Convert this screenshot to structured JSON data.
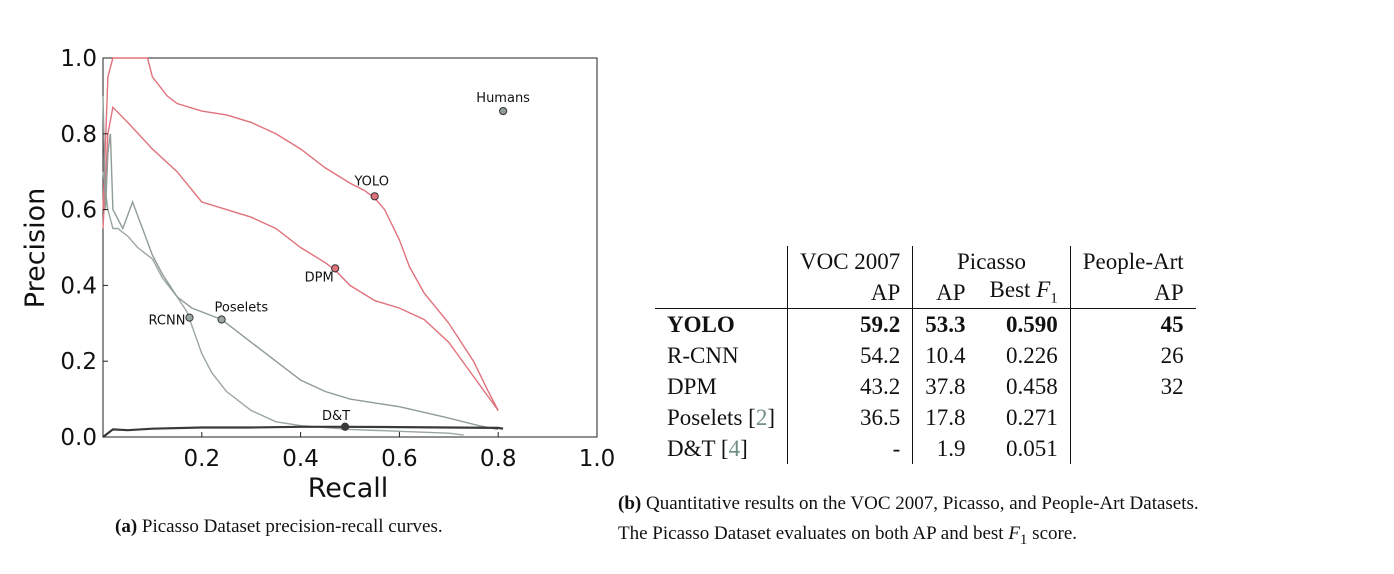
{
  "chart_data": {
    "type": "line",
    "xlabel": "Recall",
    "ylabel": "Precision",
    "xlim": [
      0.0,
      1.0
    ],
    "ylim": [
      0.0,
      1.0
    ],
    "x_ticks": [
      "0.2",
      "0.4",
      "0.6",
      "0.8",
      "1.0"
    ],
    "y_ticks": [
      "0.0",
      "0.2",
      "0.4",
      "0.6",
      "0.8",
      "1.0"
    ],
    "grid": false,
    "colors": {
      "yolo": "#e0727c",
      "dpm": "#e0727c",
      "rcnn": "#9aa6a2",
      "poselets": "#8f9c97",
      "dt": "#3a3a3a"
    },
    "series": [
      {
        "name": "YOLO",
        "x": [
          0,
          0.01,
          0.02,
          0.05,
          0.09,
          0.1,
          0.13,
          0.15,
          0.2,
          0.25,
          0.3,
          0.35,
          0.4,
          0.45,
          0.5,
          0.53,
          0.55,
          0.57,
          0.6,
          0.62,
          0.65,
          0.7,
          0.75,
          0.78,
          0.8
        ],
        "y": [
          0.6,
          0.95,
          1.0,
          1.0,
          1.0,
          0.95,
          0.9,
          0.88,
          0.86,
          0.85,
          0.83,
          0.8,
          0.76,
          0.71,
          0.67,
          0.65,
          0.63,
          0.6,
          0.52,
          0.45,
          0.38,
          0.3,
          0.2,
          0.12,
          0.07
        ]
      },
      {
        "name": "DPM",
        "x": [
          0,
          0.01,
          0.02,
          0.05,
          0.1,
          0.15,
          0.2,
          0.25,
          0.3,
          0.35,
          0.4,
          0.45,
          0.47,
          0.5,
          0.55,
          0.6,
          0.65,
          0.7,
          0.75,
          0.8
        ],
        "y": [
          0.55,
          0.8,
          0.87,
          0.83,
          0.76,
          0.7,
          0.62,
          0.6,
          0.58,
          0.55,
          0.5,
          0.46,
          0.44,
          0.4,
          0.36,
          0.34,
          0.31,
          0.25,
          0.16,
          0.07
        ]
      },
      {
        "name": "RCNN",
        "x": [
          0,
          0.01,
          0.02,
          0.03,
          0.05,
          0.07,
          0.08,
          0.1,
          0.12,
          0.15,
          0.17,
          0.2,
          0.22,
          0.25,
          0.3,
          0.35,
          0.4,
          0.5,
          0.6,
          0.7,
          0.73
        ],
        "y": [
          0.7,
          0.6,
          0.55,
          0.55,
          0.53,
          0.5,
          0.49,
          0.47,
          0.42,
          0.37,
          0.33,
          0.22,
          0.17,
          0.12,
          0.07,
          0.04,
          0.03,
          0.02,
          0.015,
          0.01,
          0.005
        ]
      },
      {
        "name": "Poselets",
        "x": [
          0,
          0.005,
          0.01,
          0.015,
          0.02,
          0.04,
          0.06,
          0.08,
          0.1,
          0.12,
          0.15,
          0.18,
          0.2,
          0.24,
          0.25,
          0.3,
          0.35,
          0.4,
          0.45,
          0.5,
          0.6,
          0.7,
          0.76,
          0.8
        ],
        "y": [
          0.9,
          0.6,
          0.75,
          0.8,
          0.6,
          0.55,
          0.62,
          0.55,
          0.48,
          0.43,
          0.37,
          0.34,
          0.33,
          0.31,
          0.3,
          0.25,
          0.2,
          0.15,
          0.12,
          0.1,
          0.08,
          0.05,
          0.03,
          0.02
        ]
      },
      {
        "name": "D&T",
        "x": [
          0,
          0.02,
          0.05,
          0.1,
          0.2,
          0.3,
          0.4,
          0.49,
          0.6,
          0.7,
          0.8,
          0.81
        ],
        "y": [
          0.0,
          0.02,
          0.018,
          0.022,
          0.025,
          0.025,
          0.027,
          0.027,
          0.026,
          0.025,
          0.024,
          0.022
        ]
      }
    ],
    "annotations": [
      {
        "label": "Humans",
        "x": 0.81,
        "y": 0.86,
        "color": "#8f9c97"
      },
      {
        "label": "YOLO",
        "x": 0.55,
        "y": 0.635,
        "color": "#e0727c"
      },
      {
        "label": "DPM",
        "x": 0.47,
        "y": 0.445,
        "color": "#e0727c"
      },
      {
        "label": "Poselets",
        "x": 0.24,
        "y": 0.31,
        "color": "#9aa6a2"
      },
      {
        "label": "RCNN",
        "x": 0.175,
        "y": 0.315,
        "color": "#9aa6a2"
      },
      {
        "label": "D&T",
        "x": 0.49,
        "y": 0.027,
        "color": "#3a3a3a"
      }
    ]
  },
  "caption_a": {
    "label": "(a)",
    "text": " Picasso Dataset precision-recall curves."
  },
  "caption_b": {
    "label": "(b)",
    "line1": " Quantitative results on the VOC 2007, Picasso, and People-Art Datasets.",
    "line2_pre": "The Picasso Dataset evaluates on both AP and best ",
    "f": "F",
    "sub": "1",
    "line2_post": " score."
  },
  "table": {
    "group_headers": [
      "VOC 2007",
      "Picasso",
      "People-Art"
    ],
    "sub_headers": [
      "AP",
      "AP",
      "Best ",
      "AP"
    ],
    "f_symbol": "F",
    "f_sub": "1",
    "rows": [
      {
        "name": "YOLO",
        "ref": "",
        "voc": "59.2",
        "pic_ap": "53.3",
        "pic_f1": "0.590",
        "people": "45"
      },
      {
        "name": "R-CNN",
        "ref": "",
        "voc": "54.2",
        "pic_ap": "10.4",
        "pic_f1": "0.226",
        "people": "26"
      },
      {
        "name": "DPM",
        "ref": "",
        "voc": "43.2",
        "pic_ap": "37.8",
        "pic_f1": "0.458",
        "people": "32"
      },
      {
        "name": "Poselets ",
        "ref": "2",
        "voc": "36.5",
        "pic_ap": "17.8",
        "pic_f1": "0.271",
        "people": ""
      },
      {
        "name": "D&T ",
        "ref": "4",
        "voc": "-",
        "pic_ap": "1.9",
        "pic_f1": "0.051",
        "people": ""
      }
    ]
  }
}
